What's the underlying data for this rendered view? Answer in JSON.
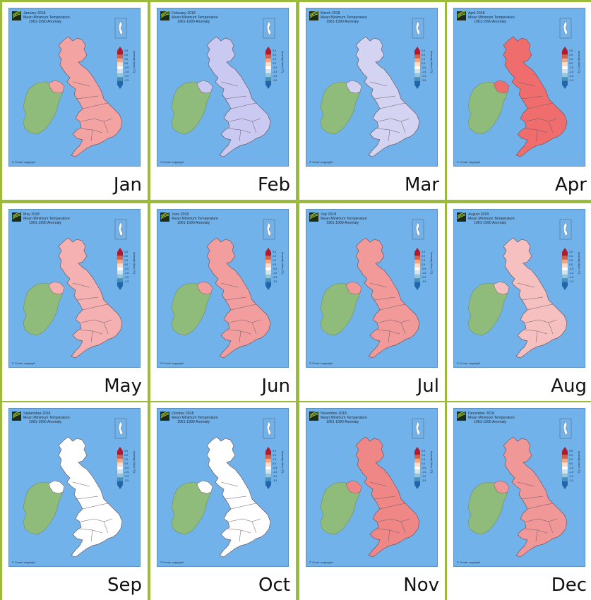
{
  "header_line2": "Mean Minimum Temperature",
  "header_line3": "1961-1990 Anomaly",
  "copyright": "© Crown copyright",
  "legend": {
    "title": "Anomaly Value (°C)",
    "ticks": [
      "3.5",
      "2.5",
      "1.5",
      "0.5",
      "-0.5",
      "-1.5",
      "-2.5",
      "-3.5"
    ],
    "colors": [
      "#b2182b",
      "#d6604d",
      "#f4a582",
      "#fddbc7",
      "#ffffff",
      "#d1e5f0",
      "#92c5de",
      "#4393c3",
      "#2166ac"
    ]
  },
  "colors": {
    "sea": "#72b2ea",
    "ireland": "#8fbc7a",
    "border": "#9bbb3b"
  },
  "months": [
    {
      "label": "Jan",
      "title": "January 2018",
      "fill": "#f4a3a3"
    },
    {
      "label": "Feb",
      "title": "February 2018",
      "fill": "#c9c9f2"
    },
    {
      "label": "Mar",
      "title": "March 2018",
      "fill": "#d4d4f2"
    },
    {
      "label": "Apr",
      "title": "April 2018",
      "fill": "#ef6d6d"
    },
    {
      "label": "May",
      "title": "May 2018",
      "fill": "#f5b1b1"
    },
    {
      "label": "Jun",
      "title": "June 2018",
      "fill": "#f39e9e"
    },
    {
      "label": "Jul",
      "title": "July 2018",
      "fill": "#f29a9a"
    },
    {
      "label": "Aug",
      "title": "August 2018",
      "fill": "#f7c0c0"
    },
    {
      "label": "Sep",
      "title": "September 2018",
      "fill": "#ffffff"
    },
    {
      "label": "Oct",
      "title": "October 2018",
      "fill": "#ffffff"
    },
    {
      "label": "Nov",
      "title": "November 2018",
      "fill": "#f08787"
    },
    {
      "label": "Dec",
      "title": "December 2018",
      "fill": "#f09898"
    }
  ]
}
